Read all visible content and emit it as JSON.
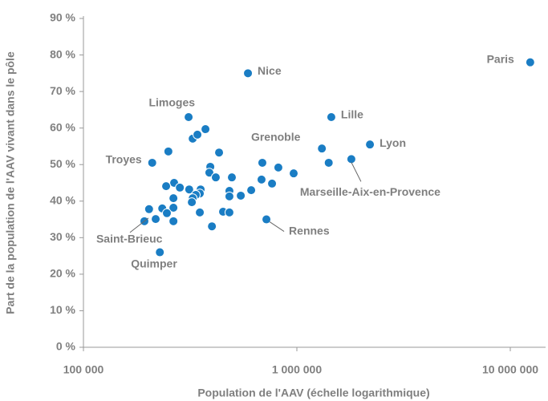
{
  "chart_data": {
    "type": "scatter",
    "xlabel": "Population de l'AAV (échelle logarithmique)",
    "ylabel": "Part de la population de l'AAV vivant dans le pôle",
    "log_x": true,
    "color": "#1a7dc4",
    "xlim": [
      100000,
      14000000
    ],
    "ylim": [
      0,
      90
    ],
    "xticks": [
      {
        "value": 100000,
        "label": "100 000"
      },
      {
        "value": 1000000,
        "label": "1 000 000"
      },
      {
        "value": 10000000,
        "label": "10 000 000"
      }
    ],
    "yticks": [
      {
        "value": 0,
        "label": "0 %"
      },
      {
        "value": 10,
        "label": "10 %"
      },
      {
        "value": 20,
        "label": "20 %"
      },
      {
        "value": 30,
        "label": "30 %"
      },
      {
        "value": 40,
        "label": "40 %"
      },
      {
        "value": 50,
        "label": "50 %"
      },
      {
        "value": 60,
        "label": "60 %"
      },
      {
        "value": 70,
        "label": "70 %"
      },
      {
        "value": 80,
        "label": "80 %"
      },
      {
        "value": 90,
        "label": "90 %"
      }
    ],
    "x": [
      12400000,
      590000,
      1450000,
      2200000,
      1800000,
      689000,
      720000,
      311000,
      210000,
      193000,
      228000,
      373000,
      325000,
      342000,
      250000,
      432000,
      1310000,
      1410000,
      819000,
      966000,
      393000,
      389000,
      417000,
      496000,
      683000,
      765000,
      266000,
      244000,
      283000,
      313000,
      354000,
      483000,
      611000,
      351000,
      336000,
      325000,
      264000,
      483000,
      546000,
      322000,
      234000,
      264000,
      203000,
      246000,
      351000,
      451000,
      483000,
      218000,
      264000,
      400000
    ],
    "values": [
      78,
      75,
      63,
      55.5,
      51.5,
      50.5,
      35,
      63,
      50.5,
      34.5,
      26,
      59.7,
      57.1,
      58.2,
      53.6,
      53.3,
      54.4,
      50.5,
      49.2,
      47.6,
      49.4,
      47.8,
      46.5,
      46.5,
      45.9,
      44.8,
      45,
      44.1,
      43.7,
      43.2,
      43.2,
      42.8,
      43,
      42.1,
      41.7,
      40.8,
      40.8,
      41.3,
      41.5,
      39.7,
      38,
      38.2,
      37.8,
      36.7,
      36.9,
      37.1,
      36.9,
      35.1,
      34.5,
      33.1
    ],
    "point_labels": [
      "Paris",
      "Nice",
      "Lille",
      "Lyon",
      "Marseille-Aix-en-Provence",
      "Grenoble",
      "Rennes",
      "Limoges",
      "Troyes",
      "Saint-Brieuc",
      "Quimper",
      null,
      null,
      null,
      null,
      null,
      null,
      null,
      null,
      null,
      null,
      null,
      null,
      null,
      null,
      null,
      null,
      null,
      null,
      null,
      null,
      null,
      null,
      null,
      null,
      null,
      null,
      null,
      null,
      null,
      null,
      null,
      null,
      null,
      null,
      null,
      null,
      null,
      null,
      null
    ]
  }
}
